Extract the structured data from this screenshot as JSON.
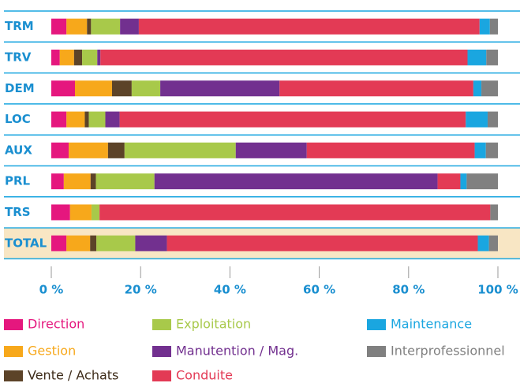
{
  "chart_data": {
    "type": "stacked-bar-horizontal",
    "categories": [
      "TRM",
      "TRV",
      "DEM",
      "LOC",
      "AUX",
      "PRL",
      "TRS",
      "TOTAL"
    ],
    "series": [
      {
        "name": "Direction",
        "color": "#e5177e",
        "values": [
          3.4,
          1.9,
          5.3,
          3.4,
          3.9,
          2.8,
          4.2,
          3.4
        ]
      },
      {
        "name": "Gestion",
        "color": "#f7a81b",
        "values": [
          4.6,
          3.2,
          8.3,
          4.1,
          8.8,
          6.0,
          4.8,
          5.3
        ]
      },
      {
        "name": "Vente / Achats",
        "color": "#5c4328",
        "values": [
          0.9,
          1.8,
          4.4,
          0.9,
          3.7,
          1.2,
          0,
          1.4
        ]
      },
      {
        "name": "Exploitation",
        "color": "#a8c94a",
        "values": [
          6.5,
          3.4,
          6.4,
          3.7,
          24.9,
          13.1,
          1.8,
          8.7
        ]
      },
      {
        "name": "Manutention / Mag.",
        "color": "#72308f",
        "values": [
          4.2,
          0.7,
          26.7,
          3.2,
          15.9,
          63.4,
          0,
          7.1
        ]
      },
      {
        "name": "Conduite",
        "color": "#e33a55",
        "values": [
          76.3,
          82.2,
          43.4,
          77.5,
          37.6,
          5.1,
          87.5,
          69.6
        ]
      },
      {
        "name": "Maintenance",
        "color": "#1aa6e0",
        "values": [
          2.3,
          4.2,
          1.8,
          4.9,
          2.5,
          1.4,
          0,
          2.5
        ]
      },
      {
        "name": "Interprofessionnel",
        "color": "#808080",
        "values": [
          1.8,
          2.6,
          3.7,
          2.3,
          2.7,
          7.0,
          1.7,
          2.0
        ]
      }
    ],
    "xlim": [
      0,
      100
    ],
    "xticks": [
      {
        "value": 0,
        "label": "0 %"
      },
      {
        "value": 20,
        "label": "20 %"
      },
      {
        "value": 40,
        "label": "40 %"
      },
      {
        "value": 60,
        "label": "60 %"
      },
      {
        "value": 80,
        "label": "80 %"
      },
      {
        "value": 100,
        "label": "100 %"
      }
    ],
    "highlight_category": "TOTAL"
  }
}
